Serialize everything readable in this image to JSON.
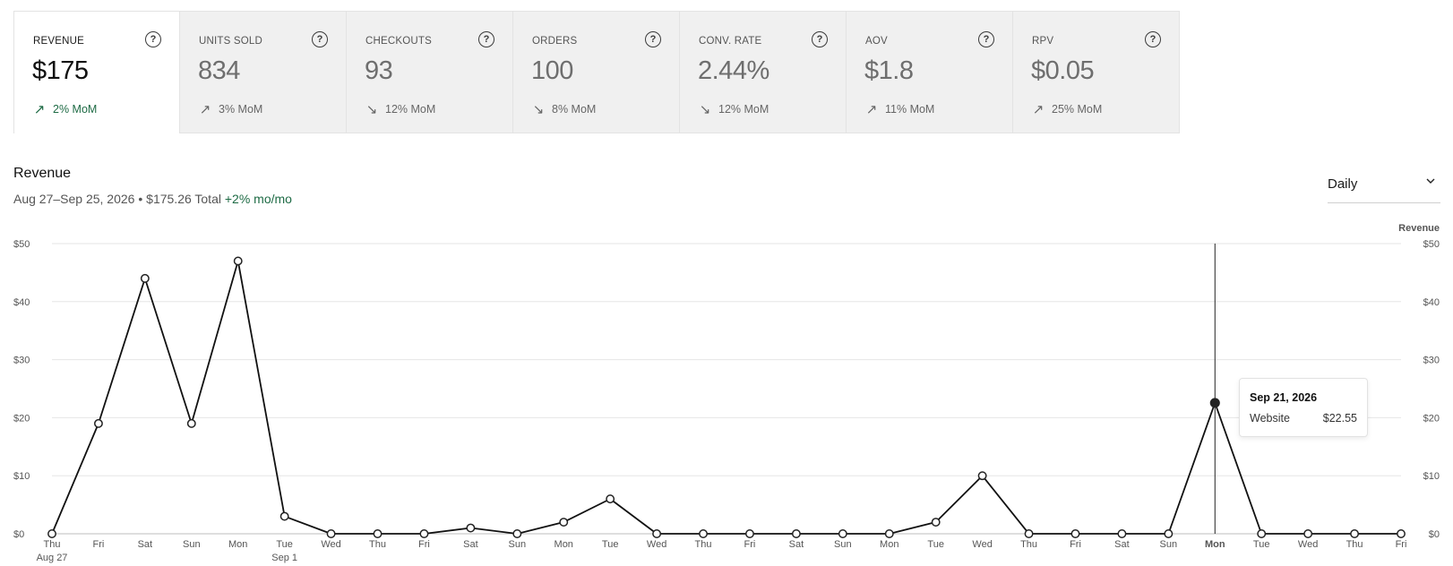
{
  "metrics": [
    {
      "label": "REVENUE",
      "value": "$175",
      "change": "2% MoM",
      "direction": "up",
      "active": true
    },
    {
      "label": "UNITS SOLD",
      "value": "834",
      "change": "3% MoM",
      "direction": "up",
      "active": false
    },
    {
      "label": "CHECKOUTS",
      "value": "93",
      "change": "12% MoM",
      "direction": "down",
      "active": false
    },
    {
      "label": "ORDERS",
      "value": "100",
      "change": "8% MoM",
      "direction": "down",
      "active": false
    },
    {
      "label": "CONV. RATE",
      "value": "2.44%",
      "change": "12% MoM",
      "direction": "down",
      "active": false
    },
    {
      "label": "AOV",
      "value": "$1.8",
      "change": "11% MoM",
      "direction": "up",
      "active": false
    },
    {
      "label": "RPV",
      "value": "$0.05",
      "change": "25% MoM",
      "direction": "up",
      "active": false
    }
  ],
  "help_glyph": "?",
  "chart_header": {
    "title": "Revenue",
    "range": "Aug 27–Sep 25, 2026",
    "separator": "•",
    "total": "$175.26 Total",
    "change": "+2% mo/mo"
  },
  "interval_select": {
    "value": "Daily"
  },
  "tooltip": {
    "date": "Sep 21, 2026",
    "series": "Website",
    "value": "$22.55"
  },
  "colors": {
    "positive": "#1e6b45",
    "line": "#111111",
    "grid": "#e6e6e6"
  },
  "chart_data": {
    "type": "line",
    "ylabel_right": "Revenue",
    "ylim": [
      0,
      50
    ],
    "y_ticks": [
      "$0",
      "$10",
      "$20",
      "$30",
      "$40",
      "$50"
    ],
    "grid": true,
    "categories": [
      "Thu",
      "Fri",
      "Sat",
      "Sun",
      "Mon",
      "Tue",
      "Wed",
      "Thu",
      "Fri",
      "Sat",
      "Sun",
      "Mon",
      "Tue",
      "Wed",
      "Thu",
      "Fri",
      "Sat",
      "Sun",
      "Mon",
      "Tue",
      "Wed",
      "Thu",
      "Fri",
      "Sat",
      "Sun",
      "Mon",
      "Tue",
      "Wed",
      "Thu",
      "Fri"
    ],
    "sublabels": {
      "0": "Aug 27",
      "5": "Sep 1"
    },
    "highlight_index": 25,
    "series": [
      {
        "values": [
          0,
          19,
          44,
          19,
          47,
          3,
          0,
          0,
          0,
          1,
          0,
          2,
          6,
          0,
          0,
          0,
          0,
          0,
          0,
          2,
          10,
          0,
          0,
          0,
          0,
          22.55,
          0,
          0,
          0,
          0
        ]
      }
    ]
  }
}
